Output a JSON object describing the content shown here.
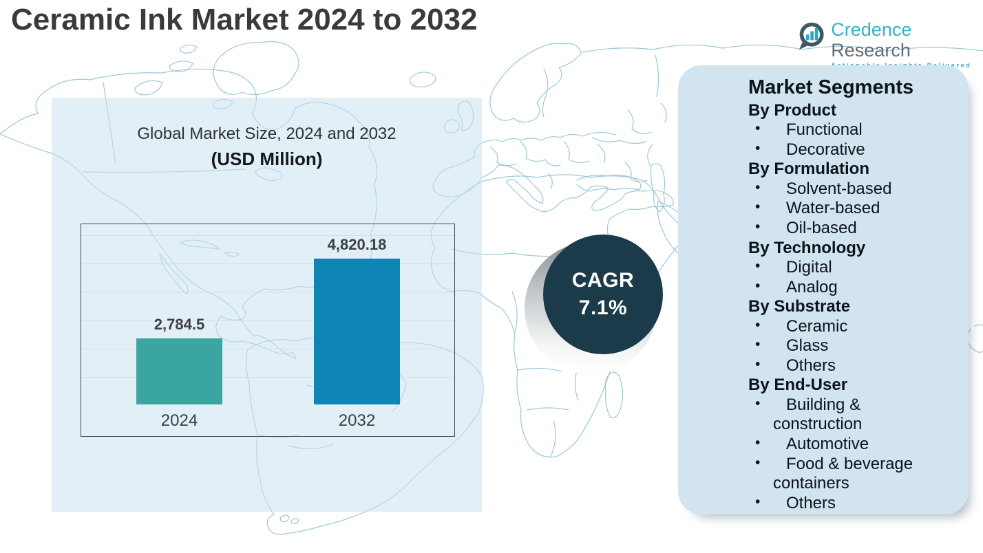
{
  "page": {
    "title": "Ceramic Ink Market 2024 to 2032"
  },
  "logo": {
    "brand_primary": "Credence",
    "brand_secondary": "Research",
    "tagline": "Actionable Insights Delivered",
    "icon": "bar-chart-speech-bubble-icon",
    "teal": "#38B0C9",
    "gray": "#5F6C74",
    "ring": "#3E5867"
  },
  "chart_data": {
    "type": "bar",
    "title_line1": "Global Market Size, 2024 and 2032",
    "title_line2": "(USD Million)",
    "categories": [
      "2024",
      "2032"
    ],
    "values": [
      2784.5,
      4820.18
    ],
    "value_labels": [
      "2,784.5",
      "4,820.18"
    ],
    "series_colors": [
      "#3BA6A0",
      "#0E85B4"
    ],
    "unit": "USD Million",
    "ylim": [
      1100,
      5700
    ],
    "gridlines": 7,
    "grid": true,
    "legend": false
  },
  "cagr": {
    "label": "CAGR",
    "value": "7.1%",
    "circle_color": "#1C3B4A",
    "text_color": "#FFFFFF"
  },
  "segments": {
    "title": "Market Segments",
    "bullet": "•",
    "panel_color": "#D2E4F0",
    "sections": [
      {
        "heading": "By Product",
        "items": [
          {
            "lines": [
              "Functional"
            ]
          },
          {
            "lines": [
              "Decorative"
            ]
          }
        ]
      },
      {
        "heading": "By Formulation",
        "items": [
          {
            "lines": [
              "Solvent-based"
            ]
          },
          {
            "lines": [
              "Water-based"
            ]
          },
          {
            "lines": [
              "Oil-based"
            ]
          }
        ]
      },
      {
        "heading": "By Technology",
        "items": [
          {
            "lines": [
              "Digital"
            ]
          },
          {
            "lines": [
              "Analog"
            ]
          }
        ]
      },
      {
        "heading": "By Substrate",
        "items": [
          {
            "lines": [
              "Ceramic"
            ]
          },
          {
            "lines": [
              "Glass"
            ]
          },
          {
            "lines": [
              "Others"
            ]
          }
        ]
      },
      {
        "heading": "By End-User",
        "items": [
          {
            "lines": [
              "Building &",
              "construction"
            ]
          },
          {
            "lines": [
              "Automotive"
            ]
          },
          {
            "lines": [
              "Food & beverage",
              "containers"
            ]
          },
          {
            "lines": [
              "Others"
            ]
          }
        ]
      }
    ]
  },
  "map": {
    "stroke_color": "#92C1D5"
  }
}
